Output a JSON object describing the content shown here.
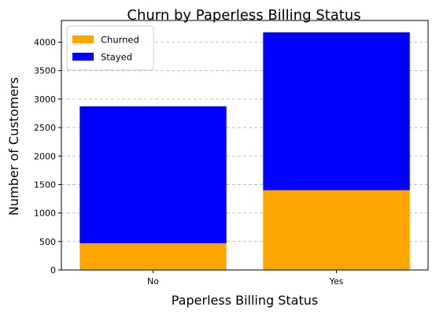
{
  "chart_data": {
    "type": "bar",
    "stacked": true,
    "title": "Churn by Paperless Billing Status",
    "xlabel": "Paperless Billing Status",
    "ylabel": "Number of Customers",
    "categories": [
      "No",
      "Yes"
    ],
    "series": [
      {
        "name": "Churned",
        "values": [
          469,
          1400
        ],
        "color": "#ffa500"
      },
      {
        "name": "Stayed",
        "values": [
          2403,
          2771
        ],
        "color": "#0000ff"
      }
    ],
    "ylim": [
      0,
      4380
    ],
    "yticks": [
      0,
      500,
      1000,
      1500,
      2000,
      2500,
      3000,
      3500,
      4000
    ],
    "grid": "y-dashed",
    "legend": {
      "position": "top-left"
    }
  }
}
